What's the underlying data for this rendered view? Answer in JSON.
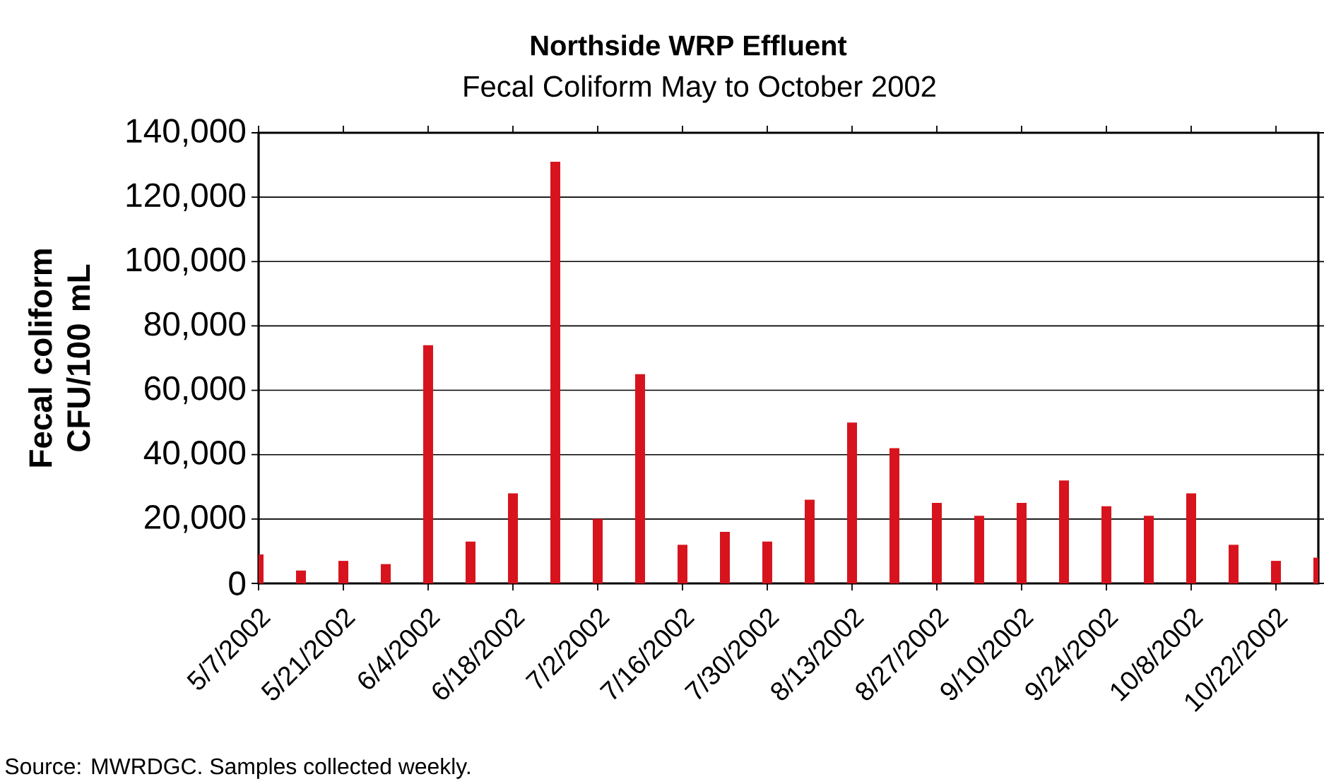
{
  "chart_data": {
    "type": "bar",
    "title": "Northside WRP Effluent",
    "subtitle": "Fecal Coliform May to October 2002",
    "ylabel": "Fecal coliform CFU/100 mL",
    "annotations": [
      "Source: MWRDGC.  Samples collected weekly."
    ],
    "x": [
      "2002-05-07",
      "2002-05-14",
      "2002-05-21",
      "2002-05-28",
      "2002-06-04",
      "2002-06-11",
      "2002-06-18",
      "2002-06-25",
      "2002-07-02",
      "2002-07-09",
      "2002-07-16",
      "2002-07-23",
      "2002-07-30",
      "2002-08-06",
      "2002-08-13",
      "2002-08-20",
      "2002-08-27",
      "2002-09-03",
      "2002-09-10",
      "2002-09-17",
      "2002-09-24",
      "2002-10-01",
      "2002-10-08",
      "2002-10-15",
      "2002-10-22",
      "2002-10-29"
    ],
    "values": [
      9000,
      4000,
      7000,
      6000,
      74000,
      13000,
      28000,
      131000,
      20000,
      65000,
      12000,
      16000,
      13000,
      26000,
      50000,
      42000,
      25000,
      21000,
      25000,
      32000,
      24000,
      21000,
      28000,
      12000,
      7000,
      8000
    ],
    "color": "#d7141e",
    "xlim": [
      "2002-05-07",
      "2002-10-29"
    ],
    "xticks": [
      {
        "value": "2002-05-07",
        "label": "5/7/2002"
      },
      {
        "value": "2002-05-21",
        "label": "5/21/2002"
      },
      {
        "value": "2002-06-04",
        "label": "6/4/2002"
      },
      {
        "value": "2002-06-18",
        "label": "6/18/2002"
      },
      {
        "value": "2002-07-02",
        "label": "7/2/2002"
      },
      {
        "value": "2002-07-16",
        "label": "7/16/2002"
      },
      {
        "value": "2002-07-30",
        "label": "7/30/2002"
      },
      {
        "value": "2002-08-13",
        "label": "8/13/2002"
      },
      {
        "value": "2002-08-27",
        "label": "8/27/2002"
      },
      {
        "value": "2002-09-10",
        "label": "9/10/2002"
      },
      {
        "value": "2002-09-24",
        "label": "9/24/2002"
      },
      {
        "value": "2002-10-08",
        "label": "10/8/2002"
      },
      {
        "value": "2002-10-22",
        "label": "10/22/2002"
      }
    ],
    "ylim": [
      0,
      140000
    ],
    "yticks": [
      0,
      {
        "value": 20000,
        "label": "20,000"
      },
      {
        "value": 40000,
        "label": "40,000"
      },
      {
        "value": 60000,
        "label": "60,000"
      },
      {
        "value": 80000,
        "label": "80,000"
      },
      {
        "value": 100000,
        "label": "100,000"
      },
      {
        "value": 120000,
        "label": "120,000"
      },
      {
        "value": 140000,
        "label": "140,000"
      }
    ],
    "grid": "y"
  }
}
